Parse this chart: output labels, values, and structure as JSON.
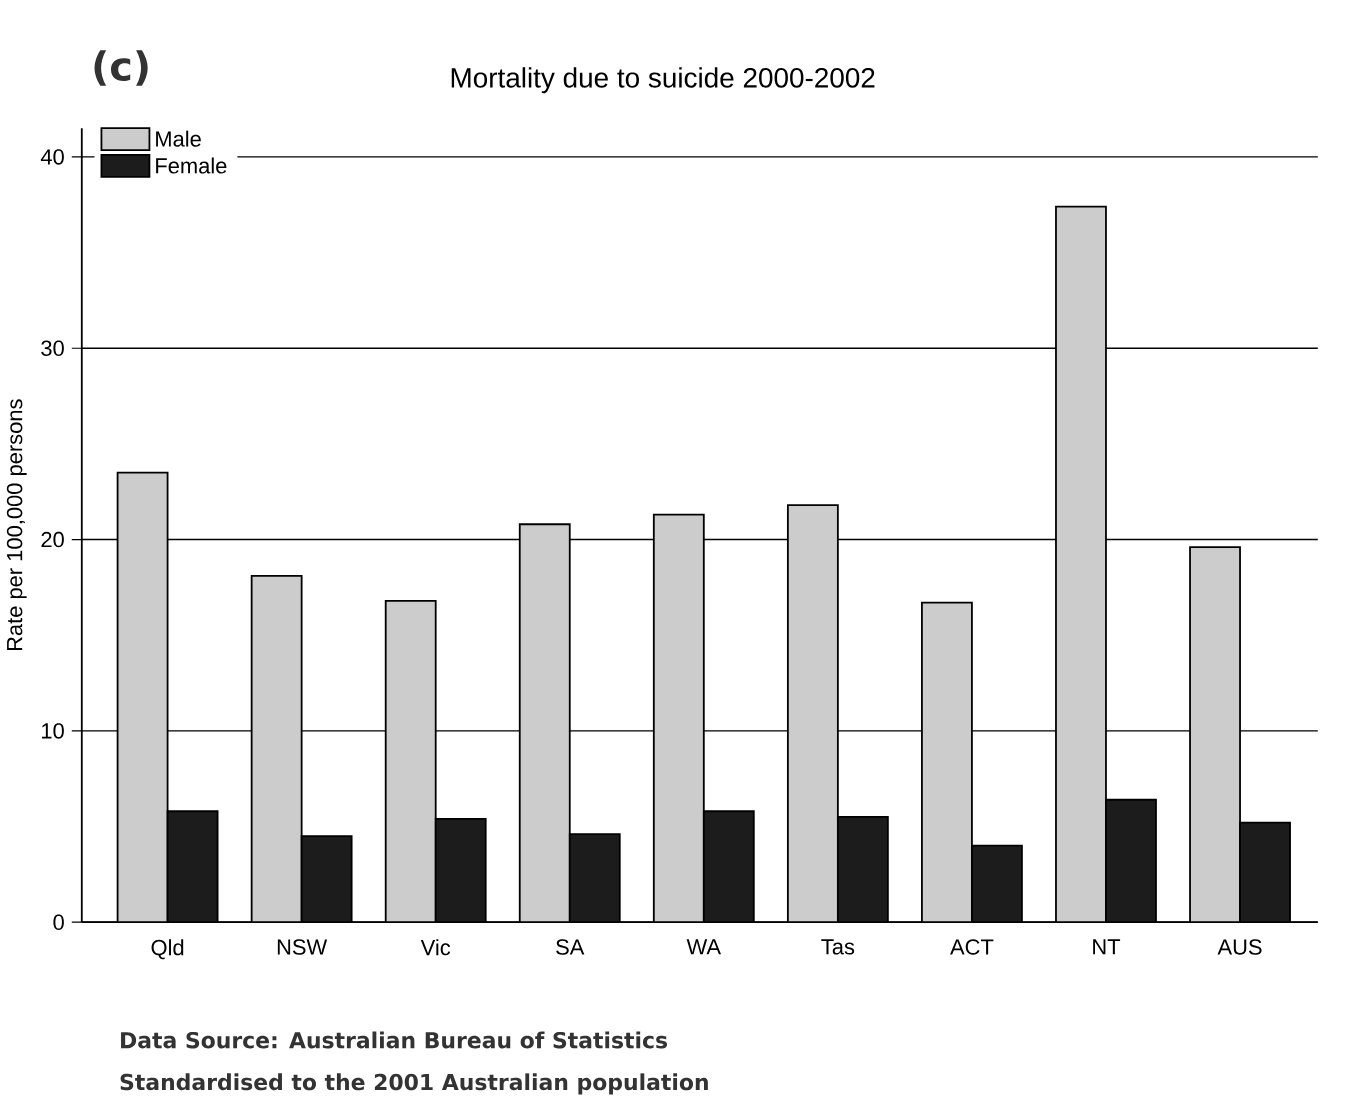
{
  "chart_data": {
    "type": "bar",
    "title": "Mortality due to suicide 2000-2002",
    "ylabel": "Rate per 100,000 persons",
    "categories": [
      "Qld",
      "NSW",
      "Vic",
      "SA",
      "WA",
      "Tas",
      "ACT",
      "NT",
      "AUS"
    ],
    "series": [
      {
        "name": "Male",
        "color": "#cccccc",
        "values": [
          23.5,
          18.1,
          16.8,
          20.8,
          21.3,
          21.8,
          16.7,
          37.4,
          19.6
        ]
      },
      {
        "name": "Female",
        "color": "#1c1c1c",
        "values": [
          5.8,
          4.5,
          5.4,
          4.6,
          5.8,
          5.5,
          4.0,
          6.4,
          5.2
        ]
      }
    ],
    "ylim": [
      0,
      41.5
    ],
    "yticks": [
      0,
      10,
      20,
      30,
      40
    ],
    "grid": "y",
    "legend": "top left",
    "annotations": [
      "(c)",
      "Data Source: Australian Bureau of Statistics",
      "Standardised to the 2001 Australian population"
    ]
  }
}
